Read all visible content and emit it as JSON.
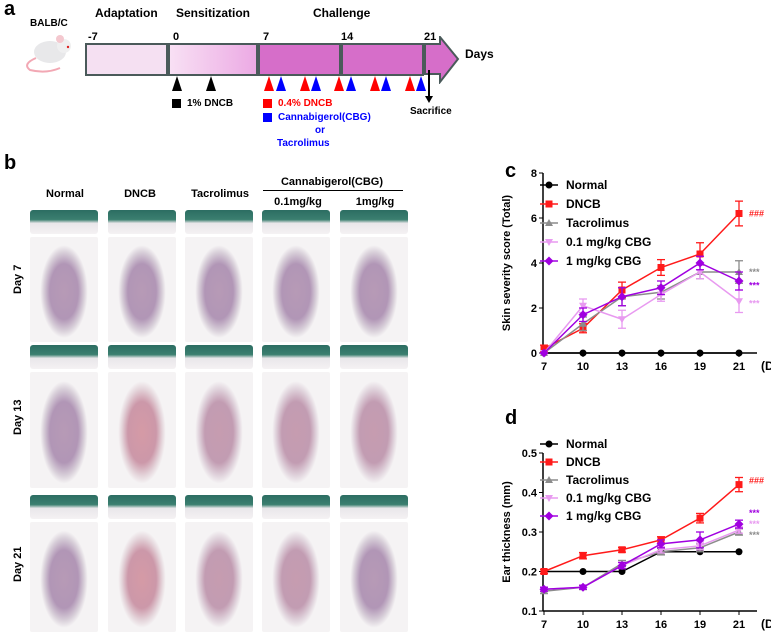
{
  "panel_a": {
    "label": "a",
    "strain": "BALB/C",
    "phases": [
      "Adaptation",
      "Sensitization",
      "Challenge"
    ],
    "days": [
      "-7",
      "0",
      "7",
      "14",
      "21"
    ],
    "axis_label": "Days",
    "legend": {
      "sensitization": "1% DNCB",
      "challenge": "0.4% DNCB",
      "treatment_line1": "Cannabigerol(CBG)",
      "treatment_or": "or",
      "treatment_line2": "Tacrolimus"
    },
    "sacrifice": "Sacrifice",
    "colors": {
      "dncb": "#ff0000",
      "treatment": "#0000ff",
      "bar_light": "#f5e0f2",
      "bar_dark": "#d66ec9"
    }
  },
  "panel_b": {
    "label": "b",
    "group_header": "Cannabigerol(CBG)",
    "columns": [
      "Normal",
      "DNCB",
      "Tacrolimus",
      "0.1mg/kg",
      "1mg/kg"
    ],
    "rows": [
      "Day 7",
      "Day 13",
      "Day 21"
    ]
  },
  "chart_data": [
    {
      "label": "c",
      "type": "line",
      "ylabel": "Skin severity score (Total)",
      "xlabel": "(Day)",
      "categories": [
        "7",
        "10",
        "13",
        "16",
        "19",
        "21"
      ],
      "ylim": [
        0,
        8
      ],
      "yticks": [
        "0",
        "2",
        "4",
        "6",
        "8"
      ],
      "legend_placement": "top-left",
      "series": [
        {
          "name": "Normal",
          "color": "#000000",
          "marker": "circle",
          "values": [
            0,
            0,
            0,
            0,
            0,
            0
          ],
          "err": [
            0,
            0,
            0,
            0,
            0,
            0
          ]
        },
        {
          "name": "DNCB",
          "color": "#ff1a1a",
          "marker": "square",
          "values": [
            0.2,
            1.1,
            2.8,
            3.8,
            4.4,
            6.2
          ],
          "err": [
            0.15,
            0.2,
            0.35,
            0.35,
            0.5,
            0.55
          ]
        },
        {
          "name": "Tacrolimus",
          "color": "#8c8c8c",
          "marker": "triangle",
          "values": [
            0,
            1.3,
            2.5,
            2.7,
            3.6,
            3.6
          ],
          "err": [
            0,
            0.3,
            0.4,
            0.3,
            0.3,
            0.5
          ]
        },
        {
          "name": "0.1 mg/kg CBG",
          "color": "#e89af0",
          "marker": "triangle-down",
          "values": [
            0,
            2.1,
            1.5,
            2.6,
            3.6,
            2.3
          ],
          "err": [
            0,
            0.3,
            0.4,
            0.3,
            0.3,
            0.5
          ]
        },
        {
          "name": "1 mg/kg CBG",
          "color": "#a000e0",
          "marker": "diamond",
          "values": [
            0,
            1.7,
            2.5,
            2.9,
            4.0,
            3.2
          ],
          "err": [
            0,
            0.3,
            0.4,
            0.3,
            0.3,
            0.4
          ]
        }
      ],
      "annotations": [
        {
          "text": "###",
          "color": "#ff1a1a",
          "y": 6.2
        },
        {
          "text": "***",
          "color": "#8c8c8c",
          "y": 3.6
        },
        {
          "text": "***",
          "color": "#a000e0",
          "y": 3.0
        },
        {
          "text": "***",
          "color": "#e89af0",
          "y": 2.2
        }
      ]
    },
    {
      "label": "d",
      "type": "line",
      "ylabel": "Ear thickness (mm)",
      "xlabel": "(Day)",
      "categories": [
        "7",
        "10",
        "13",
        "16",
        "19",
        "21"
      ],
      "ylim": [
        0.1,
        0.5
      ],
      "yticks": [
        "0.1",
        "0.2",
        "0.3",
        "0.4",
        "0.5"
      ],
      "legend_placement": "top-left",
      "series": [
        {
          "name": "Normal",
          "color": "#000000",
          "marker": "circle",
          "values": [
            0.2,
            0.2,
            0.2,
            0.25,
            0.25,
            0.25
          ],
          "err": [
            0,
            0,
            0,
            0,
            0,
            0
          ]
        },
        {
          "name": "DNCB",
          "color": "#ff1a1a",
          "marker": "square",
          "values": [
            0.2,
            0.24,
            0.255,
            0.28,
            0.335,
            0.42
          ],
          "err": [
            0.005,
            0.008,
            0.006,
            0.008,
            0.012,
            0.018
          ]
        },
        {
          "name": "Tacrolimus",
          "color": "#8c8c8c",
          "marker": "triangle",
          "values": [
            0.15,
            0.16,
            0.22,
            0.25,
            0.26,
            0.3
          ],
          "err": [
            0.005,
            0.005,
            0.008,
            0.008,
            0.01,
            0.008
          ]
        },
        {
          "name": "0.1 mg/kg CBG",
          "color": "#e89af0",
          "marker": "triangle-down",
          "values": [
            0.155,
            0.16,
            0.215,
            0.255,
            0.265,
            0.305
          ],
          "err": [
            0.005,
            0.005,
            0.008,
            0.008,
            0.01,
            0.008
          ]
        },
        {
          "name": "1 mg/kg CBG",
          "color": "#a000e0",
          "marker": "diamond",
          "values": [
            0.155,
            0.16,
            0.215,
            0.27,
            0.28,
            0.32
          ],
          "err": [
            0.005,
            0.005,
            0.008,
            0.01,
            0.02,
            0.01
          ]
        }
      ],
      "annotations": [
        {
          "text": "###",
          "color": "#ff1a1a",
          "y": 0.43
        },
        {
          "text": "***",
          "color": "#a000e0",
          "y": 0.348
        },
        {
          "text": "***",
          "color": "#e89af0",
          "y": 0.338
        },
        {
          "text": "***",
          "color": "#8c8c8c",
          "y": 0.328
        }
      ]
    }
  ]
}
